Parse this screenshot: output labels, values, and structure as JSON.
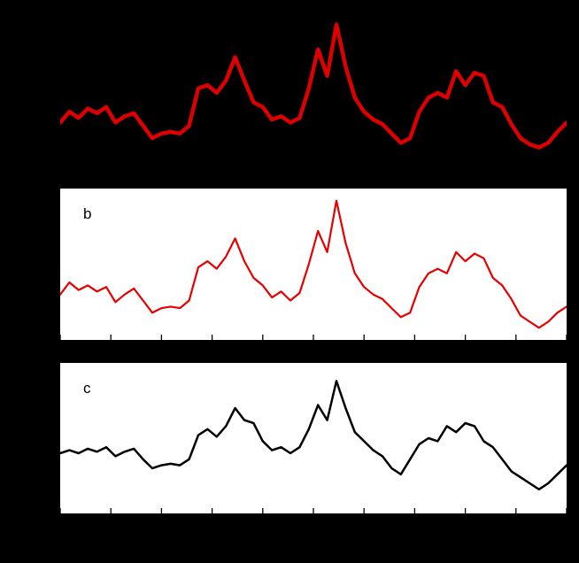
{
  "figure": {
    "background_color": "#000000",
    "note": "three stacked time-series panels; outer axis text not visible (black on black)"
  },
  "chart_data": [
    {
      "type": "line",
      "panel": "a",
      "label": "",
      "title": "",
      "xlabel": "",
      "ylabel": "",
      "line_color": "#dd0000",
      "line_width": 4.5,
      "background": "#000000",
      "ticks_visible": false,
      "x_tick_count": 11,
      "x_tick_labels": [],
      "value_scale": "normalized 0-100 (no visible axis tick labels)",
      "values": [
        27,
        34,
        30,
        36,
        33,
        37,
        27,
        31,
        33,
        25,
        17,
        20,
        21,
        20,
        25,
        49,
        51,
        46,
        54,
        69,
        54,
        40,
        37,
        29,
        31,
        27,
        30,
        49,
        74,
        57,
        90,
        63,
        43,
        34,
        29,
        26,
        20,
        14,
        17,
        34,
        43,
        46,
        43,
        60,
        51,
        59,
        57,
        40,
        37,
        26,
        17,
        13,
        11,
        14,
        21,
        27
      ]
    },
    {
      "type": "line",
      "panel": "b",
      "label": "b",
      "title": "",
      "xlabel": "",
      "ylabel": "",
      "line_color": "#e60000",
      "line_width": 2.2,
      "background": "#ffffff",
      "ticks_visible": true,
      "x_tick_count": 11,
      "x_tick_labels": [],
      "value_scale": "normalized 0-100 (no visible axis tick labels)",
      "values": [
        30,
        38,
        33,
        36,
        32,
        35,
        25,
        30,
        34,
        26,
        18,
        21,
        22,
        21,
        26,
        48,
        52,
        47,
        55,
        67,
        52,
        41,
        36,
        28,
        32,
        26,
        31,
        50,
        72,
        58,
        92,
        64,
        44,
        35,
        30,
        27,
        21,
        15,
        18,
        35,
        44,
        47,
        44,
        58,
        52,
        57,
        54,
        41,
        36,
        27,
        16,
        12,
        8,
        12,
        18,
        22
      ]
    },
    {
      "type": "line",
      "panel": "c",
      "label": "c",
      "title": "",
      "xlabel": "",
      "ylabel": "",
      "line_color": "#000000",
      "line_width": 2.5,
      "background": "#ffffff",
      "ticks_visible": true,
      "x_tick_count": 11,
      "x_tick_labels": [],
      "value_scale": "normalized 0-100 (no visible axis tick labels)",
      "values": [
        40,
        42,
        40,
        43,
        41,
        44,
        38,
        41,
        43,
        36,
        30,
        32,
        33,
        32,
        36,
        52,
        56,
        51,
        58,
        70,
        62,
        60,
        48,
        42,
        44,
        40,
        44,
        56,
        72,
        62,
        88,
        70,
        54,
        48,
        42,
        38,
        30,
        26,
        36,
        46,
        50,
        48,
        58,
        54,
        60,
        58,
        48,
        44,
        36,
        28,
        24,
        20,
        16,
        20,
        26,
        32
      ]
    }
  ]
}
